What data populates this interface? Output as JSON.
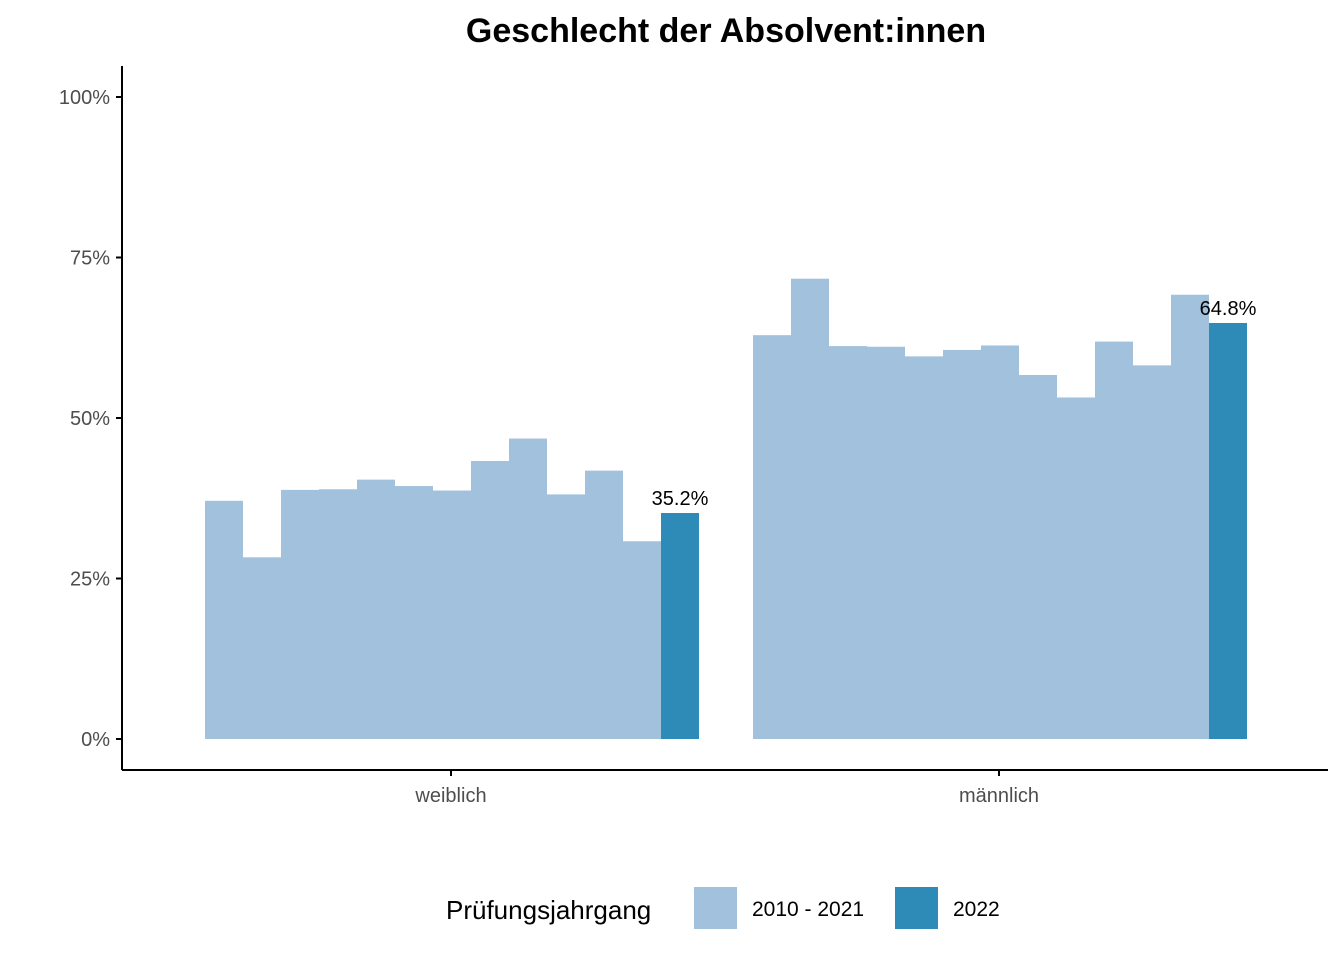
{
  "chart_data": {
    "type": "bar",
    "title": "Geschlecht der Absolvent:innen",
    "xlabel": "",
    "ylabel": "",
    "ylim": [
      0,
      1.05
    ],
    "y_ticks": [
      {
        "value": 0,
        "label": "0%"
      },
      {
        "value": 0.25,
        "label": "25%"
      },
      {
        "value": 0.5,
        "label": "50%"
      },
      {
        "value": 0.75,
        "label": "75%"
      },
      {
        "value": 1.0,
        "label": "100%"
      }
    ],
    "categories": [
      "weiblich",
      "männlich"
    ],
    "legend": {
      "title": "Prüfungsjahrgang",
      "position": "bottom",
      "items": [
        {
          "label": "2010 - 2021",
          "color": "#a1c1dc"
        },
        {
          "label": "2022",
          "color": "#2e8bb7"
        }
      ]
    },
    "groups": [
      {
        "category": "weiblich",
        "historical_values": [
          0.371,
          0.283,
          0.388,
          0.389,
          0.404,
          0.394,
          0.387,
          0.433,
          0.468,
          0.381,
          0.418,
          0.308
        ],
        "current_value": 0.352,
        "current_label": "35.2%"
      },
      {
        "category": "männlich",
        "historical_values": [
          0.629,
          0.717,
          0.612,
          0.611,
          0.596,
          0.606,
          0.613,
          0.567,
          0.532,
          0.619,
          0.582,
          0.692
        ],
        "current_value": 0.648,
        "current_label": "64.8%"
      }
    ],
    "colors": {
      "historical": "#a1c1dc",
      "current": "#2e8bb7",
      "axis": "#000000",
      "tick_text": "#4d4d4d"
    }
  }
}
